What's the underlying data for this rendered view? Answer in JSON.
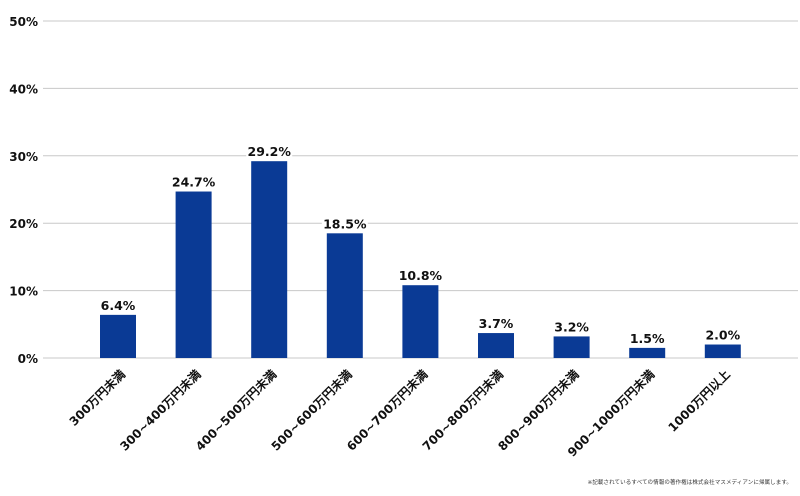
{
  "chart_data": {
    "type": "bar",
    "categories": [
      "300万円未満",
      "300~400万円未満",
      "400~500万円未満",
      "500~600万円未満",
      "600~700万円未満",
      "700~800万円未満",
      "800~900万円未満",
      "900~1000万円未満",
      "1000万円以上"
    ],
    "values": [
      6.4,
      24.7,
      29.2,
      18.5,
      10.8,
      3.7,
      3.2,
      1.5,
      2.0
    ],
    "value_labels": [
      "6.4%",
      "24.7%",
      "29.2%",
      "18.5%",
      "10.8%",
      "3.7%",
      "3.2%",
      "1.5%",
      "2.0%"
    ],
    "ylim": [
      0,
      50
    ],
    "y_ticks": [
      0,
      10,
      20,
      30,
      40,
      50
    ],
    "y_tick_labels": [
      "0%",
      "10%",
      "20%",
      "30%",
      "40%",
      "50%"
    ],
    "grid": true,
    "bar_color": "#0a3a95",
    "grid_color": "#c8c8c8"
  },
  "footnote": "※記載されているすべての情報の著作権は株式会社マスメディアンに帰属します。"
}
